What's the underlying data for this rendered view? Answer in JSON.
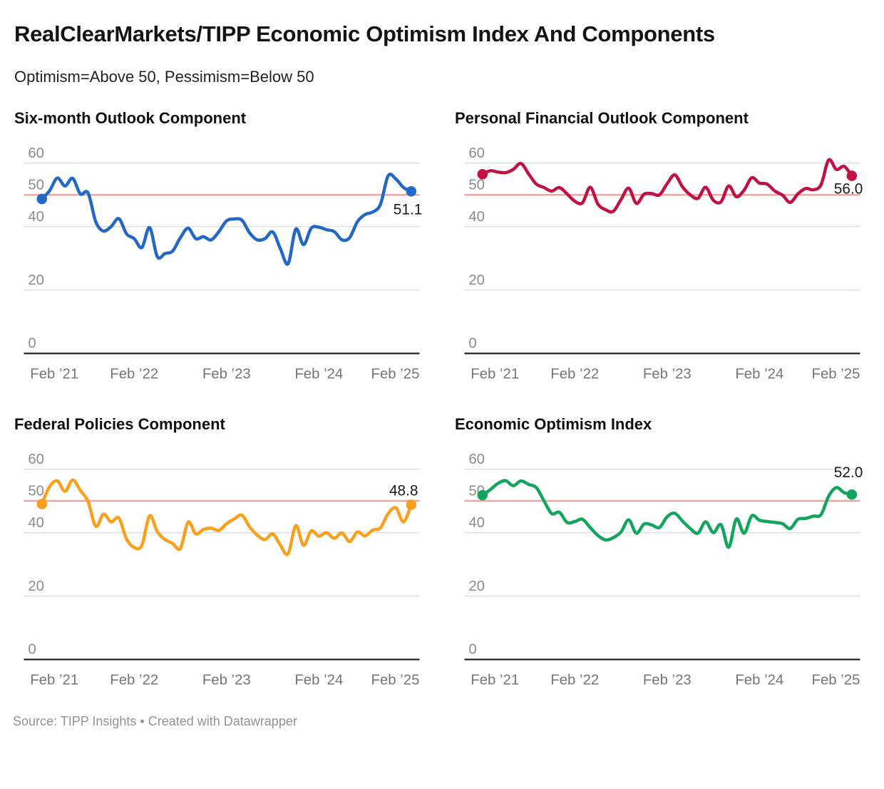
{
  "header": {
    "title": "RealClearMarkets/TIPP Economic Optimism Index And Components",
    "subtitle": "Optimism=Above 50, Pessimism=Below 50"
  },
  "footer": {
    "text": "Source: TIPP Insights • Created with Datawrapper"
  },
  "axis": {
    "x_tick_labels": [
      "Feb ’21",
      "Feb ’22",
      "Feb ’23",
      "Feb ’24",
      "Feb ’25"
    ],
    "x_tick_months": [
      0,
      12,
      24,
      36,
      48
    ],
    "y_ticks": [
      60,
      50,
      40,
      20,
      0
    ],
    "y_gridlines": [
      60,
      40,
      20
    ],
    "baseline": 0,
    "reference_line": 50,
    "ylim": [
      0,
      62
    ]
  },
  "colors": {
    "blue": "#2368c4",
    "crimson": "#c01243",
    "orange": "#f9a01c",
    "green": "#12a65c",
    "reference_line": "#eda6a2",
    "gridline": "#dcdcdc",
    "baseline": "#181818",
    "y_label": "#8c8c8c",
    "x_label": "#757575",
    "annotation": "#1a1a1a"
  },
  "chart_data": [
    {
      "type": "line",
      "title": "Six-month Outlook Component",
      "color_key": "blue",
      "x_start": "Feb 2021",
      "x_end": "Feb 2025",
      "frequency": "monthly",
      "points": 49,
      "end_label": "51.1",
      "last_value": 51.1,
      "values": [
        48.7,
        51.3,
        55.3,
        52.8,
        55.2,
        50.3,
        50.6,
        41.5,
        38.6,
        40.0,
        42.5,
        37.7,
        36.2,
        33.4,
        39.7,
        30.5,
        31.5,
        32.3,
        36.5,
        39.5,
        36.2,
        36.8,
        35.8,
        38.4,
        41.8,
        42.4,
        42.0,
        38.0,
        35.8,
        36.2,
        38.3,
        33.0,
        28.3,
        39.2,
        34.3,
        39.5,
        39.8,
        39.0,
        38.4,
        35.8,
        36.5,
        41.5,
        43.8,
        44.6,
        47.0,
        56.0,
        55.0,
        52.3,
        51.1
      ]
    },
    {
      "type": "line",
      "title": "Personal Financial Outlook Component",
      "color_key": "crimson",
      "x_start": "Feb 2021",
      "x_end": "Feb 2025",
      "frequency": "monthly",
      "points": 49,
      "end_label": "56.0",
      "last_value": 56.0,
      "values": [
        56.5,
        57.6,
        57.2,
        57.0,
        58.0,
        59.9,
        56.6,
        53.4,
        52.3,
        51.2,
        52.3,
        50.3,
        48.0,
        47.5,
        52.4,
        47.1,
        45.3,
        44.8,
        48.5,
        52.1,
        47.3,
        50.2,
        50.4,
        50.0,
        53.5,
        56.3,
        52.5,
        50.0,
        48.9,
        52.4,
        48.3,
        47.8,
        52.8,
        49.4,
        51.5,
        55.4,
        53.7,
        53.4,
        51.2,
        49.9,
        47.6,
        50.3,
        52.0,
        51.6,
        53.2,
        61.0,
        58.0,
        59.0,
        56.0
      ]
    },
    {
      "type": "line",
      "title": "Federal Policies Component",
      "color_key": "orange",
      "x_start": "Feb 2021",
      "x_end": "Feb 2025",
      "frequency": "monthly",
      "points": 49,
      "end_label": "48.8",
      "last_value": 48.8,
      "values": [
        49.0,
        54.5,
        56.3,
        53.0,
        56.6,
        53.3,
        49.8,
        42.0,
        45.8,
        43.4,
        44.6,
        38.0,
        35.3,
        36.0,
        45.3,
        40.3,
        37.8,
        36.6,
        35.0,
        43.3,
        39.6,
        41.0,
        41.4,
        40.7,
        42.8,
        44.3,
        45.5,
        41.8,
        39.2,
        37.8,
        39.6,
        36.0,
        33.3,
        42.2,
        36.0,
        40.5,
        38.9,
        40.0,
        38.2,
        39.9,
        37.2,
        40.2,
        39.0,
        40.8,
        41.5,
        46.0,
        47.8,
        43.4,
        48.8
      ]
    },
    {
      "type": "line",
      "title": "Economic Optimism Index",
      "color_key": "green",
      "x_start": "Feb 2021",
      "x_end": "Feb 2025",
      "frequency": "monthly",
      "points": 49,
      "end_label": "52.0",
      "last_value": 52.0,
      "values": [
        51.8,
        53.5,
        55.5,
        56.4,
        54.8,
        56.3,
        55.2,
        54.2,
        50.0,
        46.0,
        46.4,
        43.2,
        43.5,
        44.2,
        41.6,
        39.1,
        37.7,
        38.4,
        40.2,
        44.0,
        39.8,
        42.7,
        42.4,
        41.6,
        45.0,
        46.1,
        43.6,
        41.3,
        39.8,
        43.4,
        40.0,
        42.5,
        35.4,
        44.3,
        39.8,
        45.3,
        43.9,
        43.5,
        43.2,
        42.8,
        41.3,
        44.2,
        44.5,
        45.2,
        45.7,
        51.5,
        54.2,
        52.6,
        52.0
      ]
    }
  ]
}
